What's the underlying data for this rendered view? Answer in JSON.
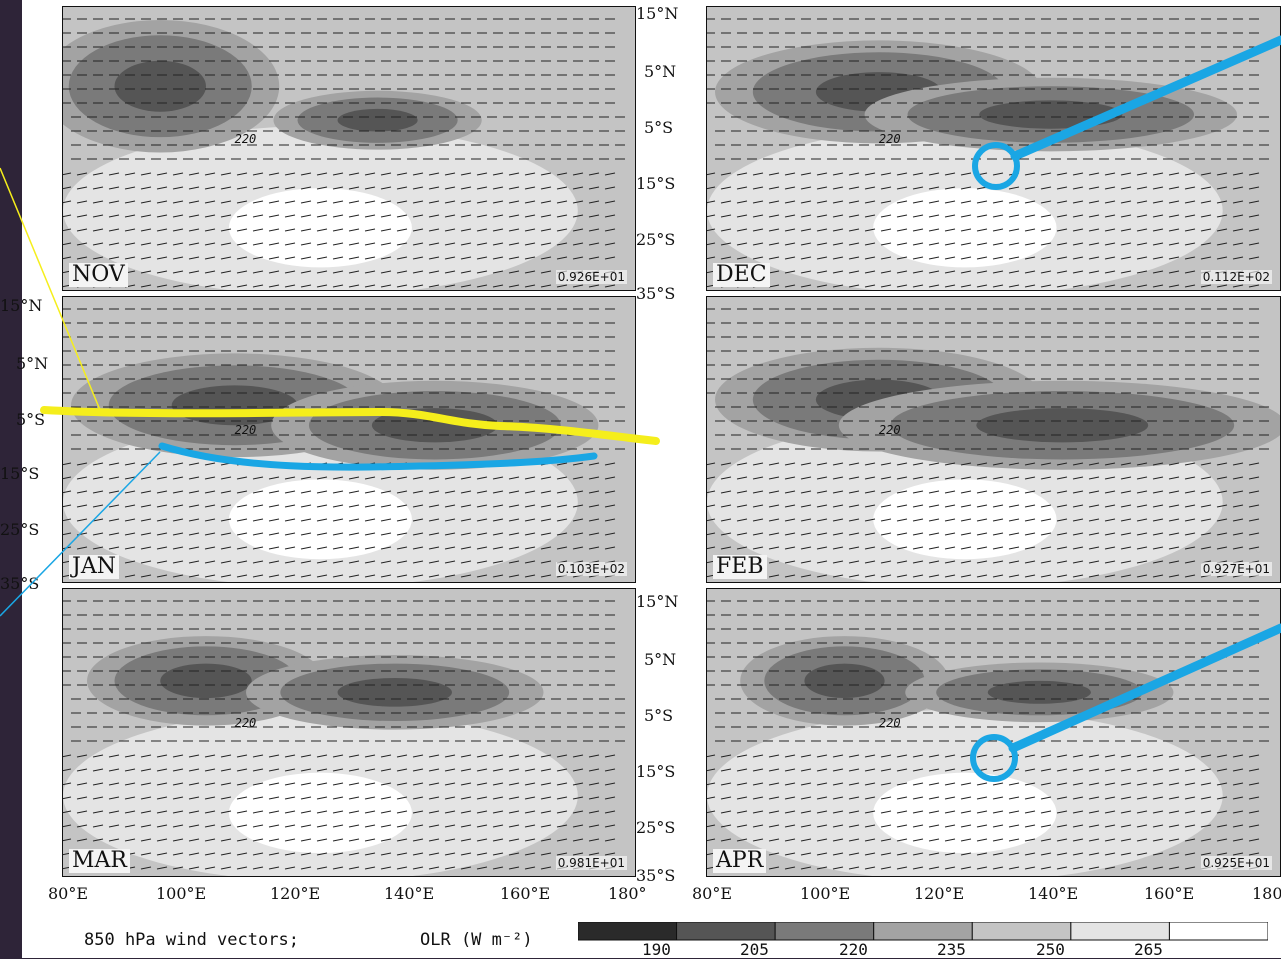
{
  "panels": [
    {
      "month": "NOV",
      "scale": "0.926E+01"
    },
    {
      "month": "DEC",
      "scale": "0.112E+02"
    },
    {
      "month": "JAN",
      "scale": "0.103E+02"
    },
    {
      "month": "FEB",
      "scale": "0.927E+01"
    },
    {
      "month": "MAR",
      "scale": "0.981E+01"
    },
    {
      "month": "APR",
      "scale": "0.925E+01"
    }
  ],
  "lat_labels": [
    "15°N",
    "5°N",
    "5°S",
    "15°S",
    "25°S",
    "35°S"
  ],
  "lon_labels": [
    "80°E",
    "100°E",
    "120°E",
    "140°E",
    "160°E",
    "180°"
  ],
  "contour_label": "220",
  "legend": {
    "wind_text": "850 hPa wind vectors;",
    "olr_text": "OLR (W m⁻²)",
    "ticks": [
      "190",
      "205",
      "220",
      "235",
      "250",
      "265"
    ],
    "colors": [
      "#2a2a2a",
      "#555555",
      "#7a7a7a",
      "#a3a3a3",
      "#c4c4c4",
      "#e4e4e4",
      "#ffffff"
    ]
  },
  "annotation_colors": {
    "yellow": "#f5ee1c",
    "blue": "#1aa6e4"
  }
}
